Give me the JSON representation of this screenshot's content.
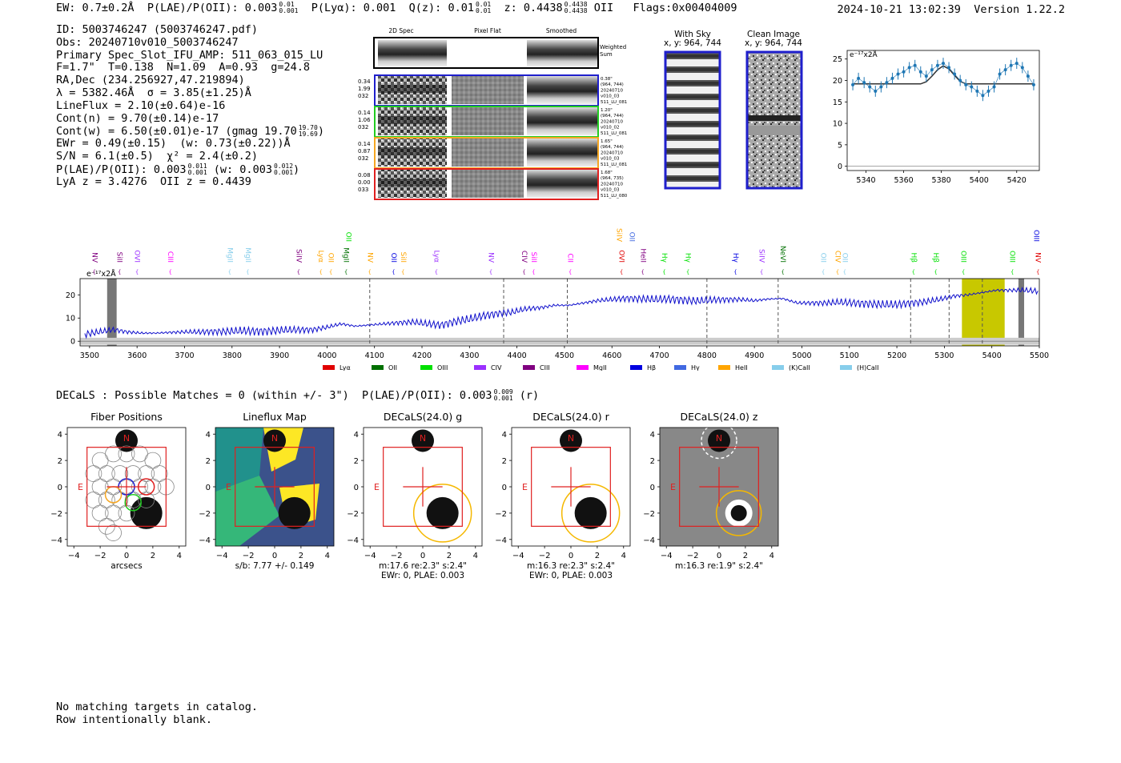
{
  "header": {
    "ew": "EW: 0.7±0.2Å",
    "plae_label": "P(LAE)/P(OII): 0.003",
    "plae_up": "0.01",
    "plae_lo": "0.001",
    "plya": "P(Lyα): 0.001",
    "qz_label": "Q(z): 0.01",
    "qz_up": "0.01",
    "qz_lo": "0.01",
    "z_label": "z: 0.4438",
    "z_up": "0.4438",
    "z_lo": "0.4438",
    "z_line": "OII",
    "flags": "Flags:0x00404009",
    "datetime": "2024-10-21 13:02:39",
    "version": "Version 1.22.2"
  },
  "info": {
    "id": "ID: 5003746247 (5003746247.pdf)",
    "obs": "Obs: 20240710v010_5003746247",
    "primary": "Primary Spec_Slot_IFU_AMP: 511_063_015_LU",
    "fparams": "F=1.7\"  T=0.138  N=1.09  A=0.93  g=24.8",
    "radec": "RA,Dec (234.256927,47.219894)",
    "lambda": "λ = 5382.46Å  σ = 3.85(±1.25)Å",
    "lineflux": "LineFlux = 2.10(±0.64)e-16",
    "contn": "Cont(n) = 9.70(±0.14)e-17",
    "contw": "Cont(w) = 6.50(±0.01)e-17 (gmag 19.70",
    "gmag_up": "19.70",
    "gmag_lo": "19.69",
    "ewr": "EWr = 0.49(±0.15)  (w: 0.73(±0.22))Å",
    "sn": "S/N = 6.1(±0.5)  χ² = 2.4(±0.2)",
    "plae2": "P(LAE)/P(OII): 0.003",
    "plae2_up": "0.011",
    "plae2_lo": "0.001",
    "plae2_w": "(w: 0.003",
    "plae2_w_up": "0.012",
    "plae2_w_lo": "0.001",
    "lya_z": "LyA z = 3.4276  OII z = 0.4439"
  },
  "spec_panel": {
    "col_titles": [
      "2D Spec",
      "Pixel Flat",
      "Smoothed"
    ],
    "weighted_sum": "Weighted Sum",
    "rows": [
      {
        "left": [
          "0.34",
          "1.99",
          "032"
        ],
        "right": [
          "0.38\"",
          "(964, 744)",
          "20240710",
          "v010_03",
          "511_LU_081"
        ],
        "color": "#1f1fcc"
      },
      {
        "left": [
          "0.14",
          "1.06",
          "032"
        ],
        "right": [
          "1.20\"",
          "(964, 744)",
          "20240710",
          "v010_02",
          "511_LU_081"
        ],
        "color": "#22cc22"
      },
      {
        "left": [
          "0.14",
          "0.87",
          "032"
        ],
        "right": [
          "1.65\"",
          "(964, 744)",
          "20240710",
          "v010_03",
          "511_LU_081"
        ],
        "color": "#f5a623"
      },
      {
        "left": [
          "0.08",
          "0.00",
          "033"
        ],
        "right": [
          "1.68\"",
          "(964, 735)",
          "20240710",
          "v010_03",
          "511_LU_080"
        ],
        "color": "#e02020"
      }
    ],
    "with_sky_title": "With Sky",
    "with_sky_xy": "x, y: 964, 744",
    "clean_title": "Clean Image",
    "clean_xy": "x, y: 964, 744"
  },
  "fit_chart": {
    "ylabel_unit": "e⁻¹⁷x2Å",
    "yticks": [
      "0",
      "5",
      "10",
      "15",
      "20",
      "25"
    ],
    "xticks": [
      "5340",
      "5360",
      "5380",
      "5400",
      "5420"
    ]
  },
  "full_spectrum": {
    "unit_label": "e⁻¹⁷x2Å",
    "yticks": [
      "0",
      "10",
      "20"
    ],
    "xticks": [
      "3500",
      "3600",
      "3700",
      "3800",
      "3900",
      "4000",
      "4100",
      "4200",
      "4300",
      "4400",
      "4500",
      "4600",
      "4700",
      "4800",
      "4900",
      "5000",
      "5100",
      "5200",
      "5300",
      "5400",
      "5500"
    ],
    "legend": [
      {
        "label": "Lyα",
        "color": "#e00000"
      },
      {
        "label": "OII",
        "color": "#007000"
      },
      {
        "label": "OIII",
        "color": "#00e000"
      },
      {
        "label": "CIV",
        "color": "#9b30ff"
      },
      {
        "label": "CIII",
        "color": "#800080"
      },
      {
        "label": "MgII",
        "color": "#ff00ff"
      },
      {
        "label": "Hβ",
        "color": "#0000e0"
      },
      {
        "label": "Hγ",
        "color": "#4169e1"
      },
      {
        "label": "HeII",
        "color": "#ffa500"
      },
      {
        "label": "(K)CaII",
        "color": "#87ceeb"
      },
      {
        "label": "(H)CaII",
        "color": "#87ceeb"
      }
    ],
    "line_labels_low": [
      {
        "t": "NV",
        "w": 3510,
        "c": "#800080"
      },
      {
        "t": "SiII",
        "w": 3563,
        "c": "#800080"
      },
      {
        "t": "OVI",
        "w": 3600,
        "c": "#9b30ff"
      },
      {
        "t": "CIII",
        "w": 3670,
        "c": "#ff00ff"
      },
      {
        "t": "MgII",
        "w": 3795,
        "c": "#87ceeb"
      },
      {
        "t": "MgII",
        "w": 3833,
        "c": "#87ceeb"
      },
      {
        "t": "SiIV",
        "w": 3940,
        "c": "#800080"
      },
      {
        "t": "Lyα",
        "w": 3987,
        "c": "#ffa500"
      },
      {
        "t": "OII",
        "w": 4008,
        "c": "#ffa500"
      },
      {
        "t": "MgII",
        "w": 4040,
        "c": "#007000"
      },
      {
        "t": "NV",
        "w": 4090,
        "c": "#ffa500"
      },
      {
        "t": "OII",
        "w": 4140,
        "c": "#0000e0"
      },
      {
        "t": "SiII",
        "w": 4160,
        "c": "#ffa500"
      },
      {
        "t": "Lyα",
        "w": 4230,
        "c": "#9b30ff"
      },
      {
        "t": "NV",
        "w": 4345,
        "c": "#9b30ff"
      },
      {
        "t": "CIV",
        "w": 4415,
        "c": "#800080"
      },
      {
        "t": "SiII",
        "w": 4435,
        "c": "#ff00ff"
      },
      {
        "t": "CII",
        "w": 4512,
        "c": "#ff00ff"
      },
      {
        "t": "OVI",
        "w": 4620,
        "c": "#e00000"
      },
      {
        "t": "HeII",
        "w": 4665,
        "c": "#800080"
      },
      {
        "t": "Hγ",
        "w": 4710,
        "c": "#00e000"
      },
      {
        "t": "Hγ",
        "w": 4760,
        "c": "#00e000"
      },
      {
        "t": "Hγ",
        "w": 4860,
        "c": "#0000e0"
      },
      {
        "t": "SiIV",
        "w": 4915,
        "c": "#9b30ff"
      },
      {
        "t": "NeVI",
        "w": 4960,
        "c": "#007000"
      },
      {
        "t": "OII",
        "w": 5045,
        "c": "#87ceeb"
      },
      {
        "t": "CIV",
        "w": 5075,
        "c": "#ffa500"
      },
      {
        "t": "OII",
        "w": 5090,
        "c": "#87ceeb"
      },
      {
        "t": "Hβ",
        "w": 5235,
        "c": "#00e000"
      },
      {
        "t": "Hβ",
        "w": 5282,
        "c": "#00e000"
      },
      {
        "t": "OIII",
        "w": 5340,
        "c": "#00e000"
      },
      {
        "t": "OIII",
        "w": 5443,
        "c": "#00e000"
      },
      {
        "t": "NV",
        "w": 5497,
        "c": "#e00000"
      }
    ],
    "line_labels_high": [
      {
        "t": "OII",
        "w": 4045,
        "c": "#00e000"
      },
      {
        "t": "SiIV",
        "w": 4615,
        "c": "#ffa500"
      },
      {
        "t": "OII",
        "w": 4642,
        "c": "#4169e1"
      },
      {
        "t": "OIII",
        "w": 5493,
        "c": "#0000e0"
      }
    ]
  },
  "decals": {
    "line": "DECaLS : Possible Matches = 0 (within +/- 3\")  P(LAE)/P(OII): 0.003",
    "plae_up": "0.009",
    "plae_lo": "0.001",
    "band": "(r)",
    "cutouts": [
      {
        "title": "Fiber Positions",
        "cap1": "arcsecs",
        "cap2": ""
      },
      {
        "title": "Lineflux Map",
        "cap1": "s/b: 7.77 +/- 0.149",
        "cap2": ""
      },
      {
        "title": "DECaLS(24.0) g",
        "cap1": "m:17.6  re:2.3\"  s:2.4\"",
        "cap2": "EWr: 0, PLAE: 0.003"
      },
      {
        "title": "DECaLS(24.0) r",
        "cap1": "m:16.3  re:2.3\"  s:2.4\"",
        "cap2": "EWr: 0, PLAE: 0.003"
      },
      {
        "title": "DECaLS(24.0) z",
        "cap1": "m:16.3  re:1.9\"  s:2.4\"",
        "cap2": ""
      }
    ],
    "axis_ticks": [
      "−4",
      "−2",
      "0",
      "2",
      "4"
    ],
    "north": "N",
    "east": "E"
  },
  "catalog": {
    "line1": "No matching targets in catalog.",
    "line2": "Row intentionally blank."
  },
  "chart_data": [
    {
      "type": "line",
      "title": "",
      "xlabel": "",
      "ylabel": "e⁻¹⁷x2Å",
      "xlim": [
        5330,
        5432
      ],
      "ylim": [
        -1,
        27
      ],
      "x": [
        5333,
        5336,
        5339,
        5342,
        5345,
        5348,
        5351,
        5354,
        5357,
        5360,
        5363,
        5366,
        5369,
        5372,
        5375,
        5378,
        5381,
        5384,
        5387,
        5390,
        5393,
        5396,
        5399,
        5402,
        5405,
        5408,
        5411,
        5414,
        5417,
        5420,
        5423,
        5426,
        5429
      ],
      "series": [
        {
          "name": "data",
          "values": [
            19,
            20.5,
            19.5,
            18.5,
            17.5,
            18.5,
            19.5,
            20.5,
            21.5,
            22,
            23,
            23.5,
            22,
            21,
            22.5,
            23.5,
            24,
            23,
            21.5,
            20,
            19,
            18.5,
            17.5,
            16.5,
            17.5,
            18.5,
            21.5,
            22.5,
            23.5,
            24,
            23,
            21,
            19
          ]
        },
        {
          "name": "fit",
          "values": [
            19.2,
            19.2,
            19.2,
            19.2,
            19.2,
            19.2,
            19.2,
            19.2,
            19.2,
            19.2,
            19.2,
            19.2,
            19.2,
            19.7,
            21,
            22.5,
            23.4,
            22.7,
            21.2,
            19.8,
            19.2,
            19.2,
            19.2,
            19.2,
            19.2,
            19.2,
            19.2,
            19.2,
            19.2,
            19.2,
            19.2,
            19.2,
            19.2
          ]
        }
      ]
    },
    {
      "type": "line",
      "title": "",
      "xlabel": "",
      "ylabel": "e⁻¹⁷x2Å",
      "xlim": [
        3480,
        5500
      ],
      "ylim": [
        -2,
        27
      ],
      "x": [
        3490,
        3520,
        3550,
        3580,
        3610,
        3640,
        3670,
        3700,
        3730,
        3760,
        3790,
        3820,
        3850,
        3880,
        3910,
        3940,
        3970,
        4000,
        4030,
        4060,
        4090,
        4120,
        4150,
        4180,
        4210,
        4240,
        4270,
        4300,
        4330,
        4360,
        4390,
        4420,
        4450,
        4480,
        4510,
        4540,
        4570,
        4600,
        4630,
        4660,
        4690,
        4720,
        4750,
        4780,
        4810,
        4840,
        4870,
        4900,
        4930,
        4960,
        4990,
        5020,
        5050,
        5080,
        5110,
        5140,
        5170,
        5200,
        5230,
        5260,
        5290,
        5320,
        5350,
        5380,
        5410,
        5440,
        5470,
        5500
      ],
      "series": [
        {
          "name": "spectrum",
          "values": [
            3,
            4,
            5,
            4,
            3.5,
            3.5,
            3.8,
            4,
            4,
            4.2,
            4.2,
            4.5,
            4.3,
            4.4,
            4.8,
            4.9,
            5,
            6,
            7.5,
            6.5,
            7,
            7.5,
            8,
            8.3,
            7.5,
            7,
            8.5,
            9.5,
            11,
            12,
            12.5,
            14,
            14.5,
            15.5,
            15.5,
            16.5,
            17.5,
            18,
            18.5,
            18.3,
            18,
            18.2,
            17.8,
            17.3,
            17.8,
            18,
            18,
            17.5,
            18.2,
            18.4,
            16.5,
            16.5,
            16.5,
            16.8,
            16.5,
            16.2,
            15.8,
            15.8,
            16.5,
            17,
            18,
            19.5,
            20,
            21,
            22,
            22,
            22,
            21.5
          ]
        }
      ],
      "highlight_region": [
        5337,
        5427
      ],
      "dashed_lines": [
        4090,
        4372,
        4506,
        4800,
        4950,
        5229,
        5310,
        5380
      ]
    }
  ]
}
